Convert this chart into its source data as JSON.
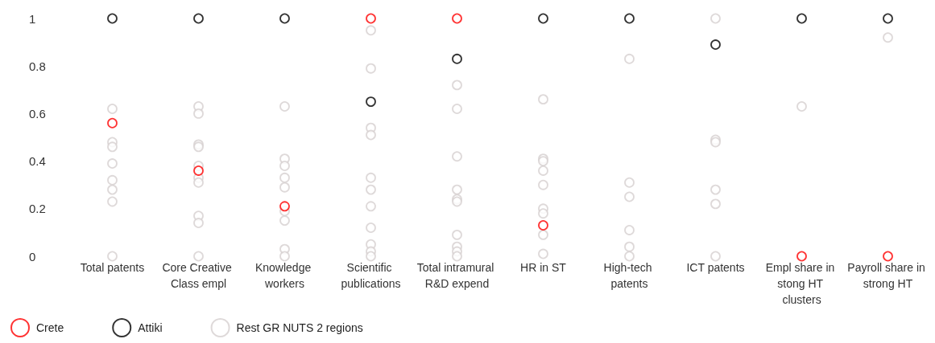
{
  "chart_data": {
    "type": "scatter",
    "categories": [
      "Total patents",
      "Core Creative Class empl",
      "Knowledge workers",
      "Scientific publications",
      "Total intramural R&D expend",
      "HR in ST",
      "High-tech patents",
      "ICT patents",
      "Empl share in stong HT clusters",
      "Payroll share in strong HT"
    ],
    "ylim": [
      0,
      1
    ],
    "yticks": [
      0,
      0.2,
      0.4,
      0.6,
      0.8,
      1
    ],
    "grid": false,
    "legend": "bottom left",
    "marker": "circle",
    "series": [
      {
        "name": "Crete",
        "color": "#ff0000",
        "values": [
          0.56,
          0.36,
          0.21,
          1,
          1,
          0.13,
          null,
          null,
          0,
          0
        ]
      },
      {
        "name": "Attiki",
        "color": "#000000",
        "values": [
          1,
          1,
          1,
          0.65,
          0.83,
          1,
          1,
          0.89,
          1,
          1
        ]
      },
      {
        "name": "Rest GR NUTS 2 regions",
        "color": "#d6cfcf",
        "x": [
          "Total patents",
          "Total patents",
          "Total patents",
          "Total patents",
          "Total patents",
          "Total patents",
          "Total patents",
          "Total patents",
          "Core Creative Class empl",
          "Core Creative Class empl",
          "Core Creative Class empl",
          "Core Creative Class empl",
          "Core Creative Class empl",
          "Core Creative Class empl",
          "Core Creative Class empl",
          "Core Creative Class empl",
          "Core Creative Class empl",
          "Core Creative Class empl",
          "Knowledge workers",
          "Knowledge workers",
          "Knowledge workers",
          "Knowledge workers",
          "Knowledge workers",
          "Knowledge workers",
          "Knowledge workers",
          "Knowledge workers",
          "Knowledge workers",
          "Scientific publications",
          "Scientific publications",
          "Scientific publications",
          "Scientific publications",
          "Scientific publications",
          "Scientific publications",
          "Scientific publications",
          "Scientific publications",
          "Scientific publications",
          "Scientific publications",
          "Scientific publications",
          "Total intramural R&D expend",
          "Total intramural R&D expend",
          "Total intramural R&D expend",
          "Total intramural R&D expend",
          "Total intramural R&D expend",
          "Total intramural R&D expend",
          "Total intramural R&D expend",
          "Total intramural R&D expend",
          "Total intramural R&D expend",
          "Total intramural R&D expend",
          "HR in ST",
          "HR in ST",
          "HR in ST",
          "HR in ST",
          "HR in ST",
          "HR in ST",
          "HR in ST",
          "HR in ST",
          "HR in ST",
          "High-tech patents",
          "High-tech patents",
          "High-tech patents",
          "High-tech patents",
          "High-tech patents",
          "High-tech patents",
          "ICT patents",
          "ICT patents",
          "ICT patents",
          "ICT patents",
          "ICT patents",
          "ICT patents",
          "Empl share in stong HT clusters",
          "Payroll share in strong HT"
        ],
        "values": [
          0.62,
          0.48,
          0.46,
          0.39,
          0.32,
          0.28,
          0.23,
          0,
          0.63,
          0.6,
          0.47,
          0.46,
          0.38,
          0.33,
          0.31,
          0.17,
          0.14,
          0,
          0.63,
          0.41,
          0.38,
          0.33,
          0.29,
          0.19,
          0.15,
          0.03,
          0,
          0.95,
          0.79,
          0.54,
          0.51,
          0.33,
          0.28,
          0.21,
          0.12,
          0.05,
          0.02,
          0,
          0.72,
          0.62,
          0.42,
          0.28,
          0.24,
          0.23,
          0.09,
          0.04,
          0.02,
          0,
          0.66,
          0.41,
          0.4,
          0.36,
          0.3,
          0.2,
          0.18,
          0.09,
          0.01,
          0.83,
          0.31,
          0.25,
          0.11,
          0.04,
          0,
          1,
          0.49,
          0.48,
          0.28,
          0.22,
          0,
          0.63,
          0.92
        ]
      }
    ]
  }
}
